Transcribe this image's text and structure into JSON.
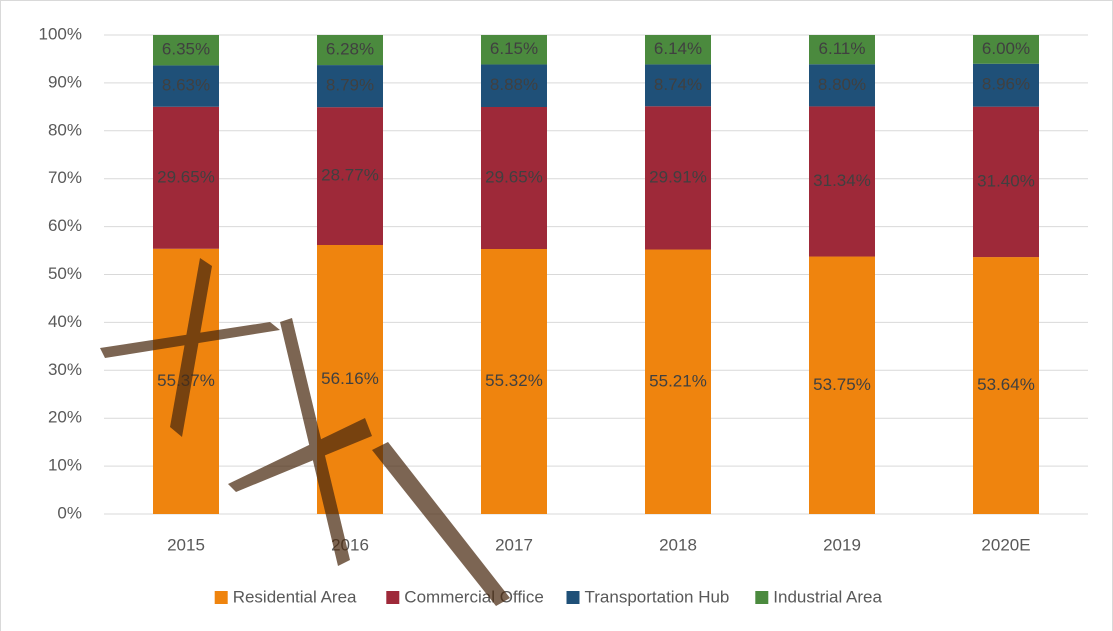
{
  "chart_data": {
    "type": "stacked_bar",
    "categories": [
      "2015",
      "2016",
      "2017",
      "2018",
      "2019",
      "2020E"
    ],
    "series": [
      {
        "name": "Residential Area",
        "color": "#ef840e",
        "values": [
          55.37,
          56.16,
          55.32,
          55.21,
          53.75,
          53.64
        ],
        "value_labels": [
          "55.37%",
          "56.16%",
          "55.32%",
          "55.21%",
          "53.75%",
          "53.64%"
        ]
      },
      {
        "name": "Commercial Office",
        "color": "#9e2939",
        "values": [
          29.65,
          28.77,
          29.65,
          29.91,
          31.34,
          31.4
        ],
        "value_labels": [
          "29.65%",
          "28.77%",
          "29.65%",
          "29.91%",
          "31.34%",
          "31.40%"
        ]
      },
      {
        "name": "Transportation Hub",
        "color": "#1f5078",
        "values": [
          8.63,
          8.79,
          8.88,
          8.74,
          8.8,
          8.96
        ],
        "value_labels": [
          "8.63%",
          "8.79%",
          "8.88%",
          "8.74%",
          "8.80%",
          "8.96%"
        ]
      },
      {
        "name": "Industrial Area",
        "color": "#4b8a3e",
        "values": [
          6.35,
          6.28,
          6.15,
          6.14,
          6.11,
          6.0
        ],
        "value_labels": [
          "6.35%",
          "6.28%",
          "6.15%",
          "6.14%",
          "6.11%",
          "6.00%"
        ]
      }
    ],
    "ylim": [
      0,
      100
    ],
    "yticks": [
      {
        "value": 0,
        "label": "0%"
      },
      {
        "value": 10,
        "label": "10%"
      },
      {
        "value": 20,
        "label": "20%"
      },
      {
        "value": 30,
        "label": "30%"
      },
      {
        "value": 40,
        "label": "40%"
      },
      {
        "value": 50,
        "label": "50%"
      },
      {
        "value": 60,
        "label": "60%"
      },
      {
        "value": 70,
        "label": "70%"
      },
      {
        "value": 80,
        "label": "80%"
      },
      {
        "value": 90,
        "label": "90%"
      },
      {
        "value": 100,
        "label": "100%"
      }
    ],
    "grid": true,
    "legend": "bottom"
  }
}
